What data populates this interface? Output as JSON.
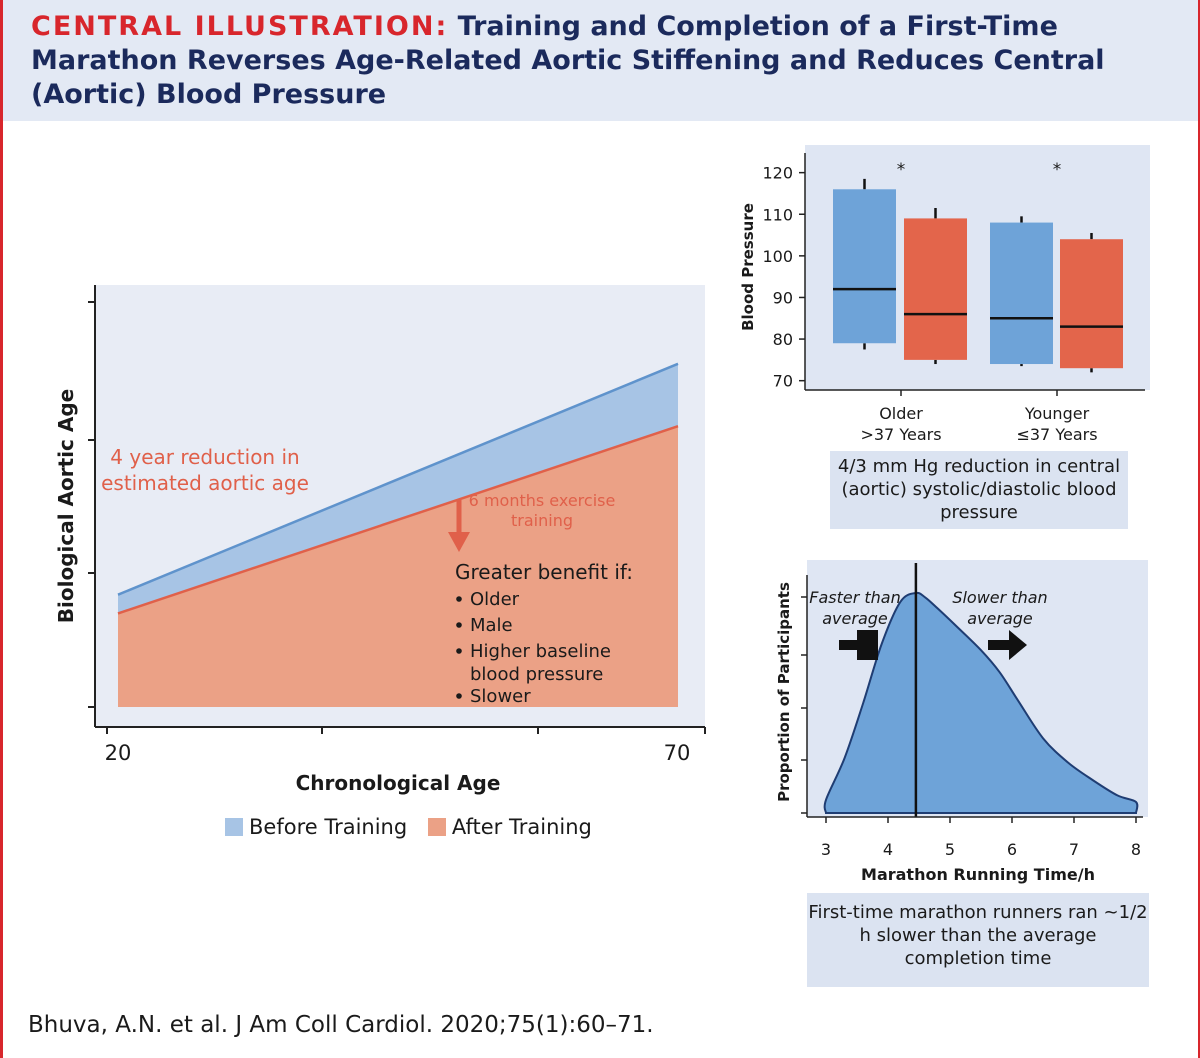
{
  "header": {
    "lead": "CENTRAL ILLUSTRATION:",
    "title": "Training and Completion of a First-Time Marathon Reverses Age-Related Aortic Stiffening and Reduces Central (Aortic) Blood Pressure"
  },
  "colors": {
    "accent_red": "#d8262c",
    "navy": "#1b2a5c",
    "blue_fill": "#a7c4e5",
    "salmon_fill": "#eba186",
    "box_blue": "#6ea3d8",
    "box_red": "#e3654b",
    "panel_bg": "#dbe3f1"
  },
  "aortic": {
    "ylabel": "Biological Aortic Age",
    "xlabel": "Chronological Age",
    "tick_20": "20",
    "tick_70": "70",
    "reduction_line1": "4 year reduction in",
    "reduction_line2": "estimated aortic age",
    "arrow_line1": "6 months exercise",
    "arrow_line2": "training",
    "benefit_title": "Greater benefit if:",
    "benefit_items": [
      "Older",
      "Male",
      "Higher baseline",
      "blood pressure",
      "Slower"
    ],
    "legend_before": "Before Training",
    "legend_after": "After Training"
  },
  "chart_data": [
    {
      "type": "area",
      "title": "",
      "xlabel": "Chronological Age",
      "ylabel": "Biological Aortic Age",
      "xlim": [
        20,
        70
      ],
      "series": [
        {
          "name": "Before Training",
          "x": [
            20,
            70
          ],
          "values": [
            30.2,
            45.0
          ]
        },
        {
          "name": "After Training",
          "x": [
            20,
            70
          ],
          "values": [
            29.0,
            41.0
          ]
        }
      ]
    },
    {
      "type": "box",
      "title": "",
      "ylabel": "Blood Pressure",
      "ylim": [
        68,
        124
      ],
      "yticks": [
        70,
        80,
        90,
        100,
        110,
        120
      ],
      "categories": [
        "Older >37 Years",
        "Younger ≤37 Years"
      ],
      "category_lines": [
        [
          "Older",
          ">37 Years"
        ],
        [
          "Younger",
          "≤37 Years"
        ]
      ],
      "significance": [
        "*",
        "*"
      ],
      "series": [
        {
          "name": "Before Training",
          "boxes": [
            {
              "whisker_low": 77.5,
              "q1": 79,
              "median": 92,
              "q3": 116,
              "whisker_high": 118.5
            },
            {
              "whisker_low": 73.5,
              "q1": 74,
              "median": 85,
              "q3": 108,
              "whisker_high": 109.5
            }
          ]
        },
        {
          "name": "After Training",
          "boxes": [
            {
              "whisker_low": 74,
              "q1": 75,
              "median": 86,
              "q3": 109,
              "whisker_high": 111.5
            },
            {
              "whisker_low": 72,
              "q1": 73,
              "median": 83,
              "q3": 104,
              "whisker_high": 105.5
            }
          ]
        }
      ],
      "caption": "4/3 mm Hg reduction in central (aortic) systolic/diastolic blood pressure"
    },
    {
      "type": "area",
      "title": "",
      "xlabel": "Marathon Running Time/h",
      "ylabel": "Proportion of Participants",
      "xlim": [
        2.85,
        8.1
      ],
      "xticks": [
        3,
        4,
        5,
        6,
        7,
        8
      ],
      "x": [
        3.0,
        3.0,
        3.3,
        3.6,
        3.9,
        4.2,
        4.45,
        4.6,
        4.8,
        5.1,
        5.5,
        5.8,
        6.1,
        6.5,
        6.9,
        7.3,
        7.7,
        8.0,
        8.0
      ],
      "values": [
        0.0,
        0.06,
        0.25,
        0.5,
        0.77,
        0.96,
        1.0,
        0.98,
        0.93,
        0.85,
        0.74,
        0.64,
        0.51,
        0.34,
        0.23,
        0.15,
        0.08,
        0.05,
        0.0
      ],
      "mean_line": 4.45,
      "label_left": [
        "Faster than",
        "average"
      ],
      "label_right": [
        "Slower than",
        "average"
      ],
      "caption": "First-time marathon runners ran ~1/2 h slower than the average completion time"
    }
  ],
  "footer": {
    "citation": "Bhuva, A.N. et al. J Am Coll Cardiol. 2020;75(1):60–71."
  }
}
